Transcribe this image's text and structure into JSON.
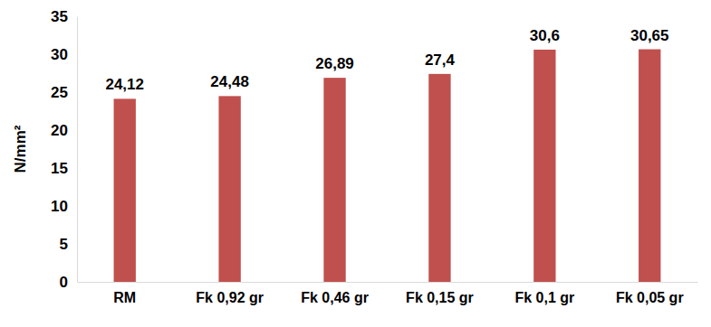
{
  "chart_data": {
    "type": "bar",
    "y_label": "N/mm²",
    "categories": [
      "RM",
      "Fk 0,92 gr",
      "Fk 0,46 gr",
      "Fk 0,15 gr",
      "Fk 0,1 gr",
      "Fk 0,05 gr"
    ],
    "values": [
      24.12,
      24.48,
      26.89,
      27.4,
      30.6,
      30.65
    ],
    "value_labels": [
      "24,12",
      "24,48",
      "26,89",
      "27,4",
      "30,6",
      "30,65"
    ],
    "data_labels": true,
    "color": "#c0504d",
    "ylim": [
      0,
      35
    ],
    "yticks": [
      0,
      5,
      10,
      15,
      20,
      25,
      30,
      35
    ],
    "grid": false
  }
}
